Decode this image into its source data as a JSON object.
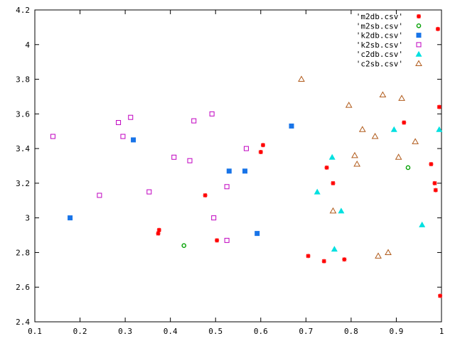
{
  "chart_data": {
    "type": "scatter",
    "xlim": [
      0.1,
      1.0
    ],
    "ylim": [
      2.4,
      4.2
    ],
    "x_ticks": [
      "0.1",
      "0.2",
      "0.3",
      "0.4",
      "0.5",
      "0.6",
      "0.7",
      "0.8",
      "0.9",
      "1"
    ],
    "y_ticks": [
      "2.4",
      "2.6",
      "2.8",
      "3",
      "3.2",
      "3.4",
      "3.6",
      "3.8",
      "4",
      "4.2"
    ],
    "grid": false,
    "legend_position": "top-right",
    "series": [
      {
        "name": "'m2db.csv'",
        "marker": "star",
        "color": "#ff0000",
        "points": [
          [
            0.373,
            2.91
          ],
          [
            0.375,
            2.93
          ],
          [
            0.477,
            3.13
          ],
          [
            0.503,
            2.87
          ],
          [
            0.6,
            3.38
          ],
          [
            0.605,
            3.42
          ],
          [
            0.705,
            2.78
          ],
          [
            0.74,
            2.75
          ],
          [
            0.746,
            3.29
          ],
          [
            0.76,
            3.2
          ],
          [
            0.785,
            2.76
          ],
          [
            0.917,
            3.55
          ],
          [
            0.977,
            3.31
          ],
          [
            0.985,
            3.2
          ],
          [
            0.987,
            3.16
          ],
          [
            0.992,
            4.09
          ],
          [
            0.995,
            3.64
          ],
          [
            0.997,
            2.55
          ]
        ]
      },
      {
        "name": "'m2sb.csv'",
        "marker": "circle-open",
        "color": "#00a000",
        "points": [
          [
            0.43,
            2.84
          ],
          [
            0.926,
            3.29
          ]
        ]
      },
      {
        "name": "'k2db.csv'",
        "marker": "square-filled",
        "color": "#1874e8",
        "points": [
          [
            0.178,
            3.0
          ],
          [
            0.318,
            3.45
          ],
          [
            0.53,
            3.27
          ],
          [
            0.565,
            3.27
          ],
          [
            0.592,
            2.91
          ],
          [
            0.668,
            3.53
          ]
        ]
      },
      {
        "name": "'k2sb.csv'",
        "marker": "square-open",
        "color": "#c000c0",
        "points": [
          [
            0.14,
            3.47
          ],
          [
            0.243,
            3.13
          ],
          [
            0.285,
            3.55
          ],
          [
            0.295,
            3.47
          ],
          [
            0.312,
            3.58
          ],
          [
            0.353,
            3.15
          ],
          [
            0.408,
            3.35
          ],
          [
            0.443,
            3.33
          ],
          [
            0.452,
            3.56
          ],
          [
            0.492,
            3.6
          ],
          [
            0.496,
            3.0
          ],
          [
            0.525,
            3.18
          ],
          [
            0.525,
            2.87
          ],
          [
            0.568,
            3.4
          ]
        ]
      },
      {
        "name": "'c2db.csv'",
        "marker": "triangle-filled",
        "color": "#00e0e0",
        "points": [
          [
            0.725,
            3.15
          ],
          [
            0.758,
            3.35
          ],
          [
            0.763,
            2.82
          ],
          [
            0.778,
            3.04
          ],
          [
            0.895,
            3.51
          ],
          [
            0.957,
            2.96
          ],
          [
            0.995,
            3.51
          ]
        ]
      },
      {
        "name": "'c2sb.csv'",
        "marker": "triangle-open",
        "color": "#b05a1a",
        "points": [
          [
            0.69,
            3.8
          ],
          [
            0.76,
            3.04
          ],
          [
            0.795,
            3.65
          ],
          [
            0.808,
            3.36
          ],
          [
            0.813,
            3.31
          ],
          [
            0.825,
            3.51
          ],
          [
            0.853,
            3.47
          ],
          [
            0.86,
            2.78
          ],
          [
            0.87,
            3.71
          ],
          [
            0.882,
            2.8
          ],
          [
            0.905,
            3.35
          ],
          [
            0.912,
            3.69
          ],
          [
            0.942,
            3.44
          ]
        ]
      }
    ]
  }
}
